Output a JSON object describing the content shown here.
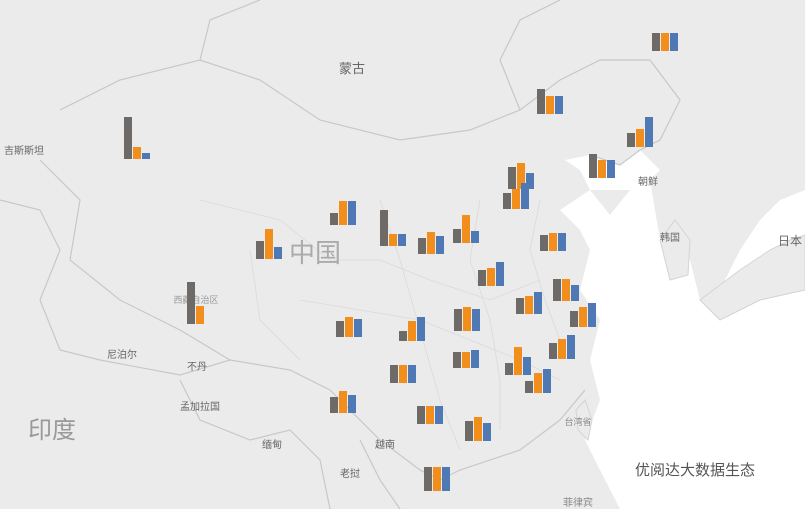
{
  "labels": [
    "蒙古",
    "吉斯斯坦",
    "中国",
    "朝鲜",
    "韩国",
    "日本",
    "尼泊尔",
    "不丹",
    "孟加拉国",
    "印度",
    "缅甸",
    "越南",
    "老挝",
    "台湾省",
    "菲律宾",
    "西藏自治区",
    "优阅达大数据生态"
  ],
  "bar_colors": [
    "#6e6a68",
    "#f28e1c",
    "#4e79b4"
  ],
  "regions": [
    {
      "values": [
        18,
        18,
        18
      ]
    },
    {
      "values": [
        25,
        18,
        18
      ]
    },
    {
      "values": [
        14,
        18,
        30
      ]
    },
    {
      "values": [
        42,
        12,
        6
      ]
    },
    {
      "values": [
        24,
        18,
        18
      ]
    },
    {
      "values": [
        22,
        26,
        16
      ]
    },
    {
      "values": [
        16,
        20,
        26
      ]
    },
    {
      "values": [
        12,
        24,
        24
      ]
    },
    {
      "values": [
        36,
        12,
        12
      ]
    },
    {
      "values": [
        16,
        22,
        18
      ]
    },
    {
      "values": [
        14,
        28,
        12
      ]
    },
    {
      "values": [
        18,
        30,
        12
      ]
    },
    {
      "values": [
        16,
        18,
        18
      ]
    },
    {
      "values": [
        42,
        18,
        0
      ]
    },
    {
      "values": [
        16,
        18,
        24
      ]
    },
    {
      "values": [
        16,
        20,
        18
      ]
    },
    {
      "values": [
        16,
        18,
        22
      ]
    },
    {
      "values": [
        22,
        22,
        16
      ]
    },
    {
      "values": [
        16,
        20,
        24
      ]
    },
    {
      "values": [
        10,
        20,
        24
      ]
    },
    {
      "values": [
        22,
        24,
        22
      ]
    },
    {
      "values": [
        16,
        16,
        18
      ]
    },
    {
      "values": [
        16,
        20,
        24
      ]
    },
    {
      "values": [
        18,
        18,
        18
      ]
    },
    {
      "values": [
        12,
        28,
        18
      ]
    },
    {
      "values": [
        12,
        20,
        24
      ]
    },
    {
      "values": [
        16,
        22,
        18
      ]
    },
    {
      "values": [
        18,
        18,
        18
      ]
    },
    {
      "values": [
        20,
        24,
        18
      ]
    },
    {
      "values": [
        24,
        24,
        24
      ]
    }
  ]
}
